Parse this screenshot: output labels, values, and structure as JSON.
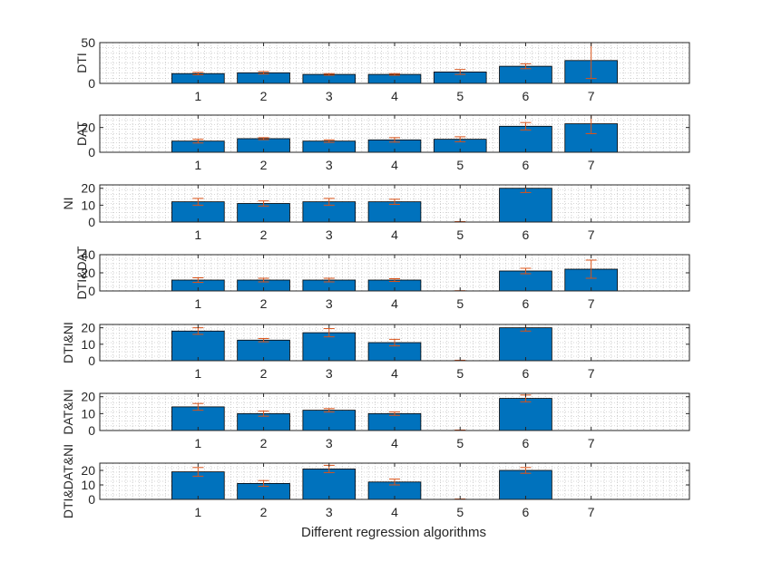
{
  "figure": {
    "xlabel": "Different regression algorithms",
    "bar_color": "#0072BD",
    "bar_edge_color": "#000000",
    "errorbar_color": "#D95319",
    "grid_color": "#b0b0b0",
    "axes_color": "#262626"
  },
  "chart_data": [
    {
      "type": "bar",
      "ylabel": "DTI",
      "categories": [
        "1",
        "2",
        "3",
        "4",
        "5",
        "6",
        "7"
      ],
      "values": [
        12,
        13,
        11,
        11,
        14,
        21,
        28
      ],
      "errors": [
        1.5,
        1.5,
        1,
        1,
        3,
        3,
        22
      ],
      "ylim": [
        0,
        50
      ],
      "xlim": [
        -0.5,
        8.5
      ],
      "yticks": [
        0,
        50
      ],
      "grid": "minor dotted"
    },
    {
      "type": "bar",
      "ylabel": "DAT",
      "categories": [
        "1",
        "2",
        "3",
        "4",
        "5",
        "6",
        "7"
      ],
      "values": [
        9,
        11,
        9,
        10,
        10.5,
        21,
        23
      ],
      "errors": [
        1.5,
        0.8,
        1,
        1.8,
        2,
        3,
        8
      ],
      "ylim": [
        0,
        30
      ],
      "xlim": [
        -0.5,
        8.5
      ],
      "yticks": [
        0,
        20
      ],
      "grid": "minor dotted"
    },
    {
      "type": "bar",
      "ylabel": "NI",
      "categories": [
        "1",
        "2",
        "3",
        "4",
        "5",
        "6",
        "7"
      ],
      "values": [
        12,
        11,
        12,
        12,
        0,
        20,
        0
      ],
      "errors": [
        2,
        1.5,
        2,
        1.5,
        0.3,
        2.5,
        0
      ],
      "ylim": [
        0,
        22
      ],
      "xlim": [
        -0.5,
        8.5
      ],
      "yticks": [
        0,
        10,
        20
      ],
      "grid": "minor dotted"
    },
    {
      "type": "bar",
      "ylabel": "DTI&DAT",
      "categories": [
        "1",
        "2",
        "3",
        "4",
        "5",
        "6",
        "7"
      ],
      "values": [
        12,
        12,
        12,
        12,
        0,
        22,
        24
      ],
      "errors": [
        2.5,
        2,
        2,
        1.5,
        0.3,
        3,
        10
      ],
      "ylim": [
        0,
        40
      ],
      "xlim": [
        -0.5,
        8.5
      ],
      "yticks": [
        0,
        20,
        40
      ],
      "grid": "minor dotted"
    },
    {
      "type": "bar",
      "ylabel": "DTI&NI",
      "categories": [
        "1",
        "2",
        "3",
        "4",
        "5",
        "6",
        "7"
      ],
      "values": [
        18,
        12.5,
        17,
        11,
        0,
        20,
        0
      ],
      "errors": [
        2,
        1,
        2.5,
        2,
        0.3,
        2,
        0
      ],
      "ylim": [
        0,
        22
      ],
      "xlim": [
        -0.5,
        8.5
      ],
      "yticks": [
        0,
        10,
        20
      ],
      "grid": "minor dotted"
    },
    {
      "type": "bar",
      "ylabel": "DAT&NI",
      "categories": [
        "1",
        "2",
        "3",
        "4",
        "5",
        "6",
        "7"
      ],
      "values": [
        14,
        10,
        12,
        10,
        0,
        19,
        0
      ],
      "errors": [
        2,
        1.5,
        1,
        1,
        0.3,
        2,
        0
      ],
      "ylim": [
        0,
        22
      ],
      "xlim": [
        -0.5,
        8.5
      ],
      "yticks": [
        0,
        10,
        20
      ],
      "grid": "minor dotted"
    },
    {
      "type": "bar",
      "ylabel": "DTI&DAT&NI",
      "categories": [
        "1",
        "2",
        "3",
        "4",
        "5",
        "6",
        "7"
      ],
      "values": [
        19,
        11,
        21,
        12,
        0,
        20,
        0
      ],
      "errors": [
        3,
        2,
        2.5,
        2,
        0.3,
        2,
        0
      ],
      "ylim": [
        0,
        25
      ],
      "xlim": [
        -0.5,
        8.5
      ],
      "yticks": [
        0,
        10,
        20
      ],
      "grid": "minor dotted"
    }
  ]
}
